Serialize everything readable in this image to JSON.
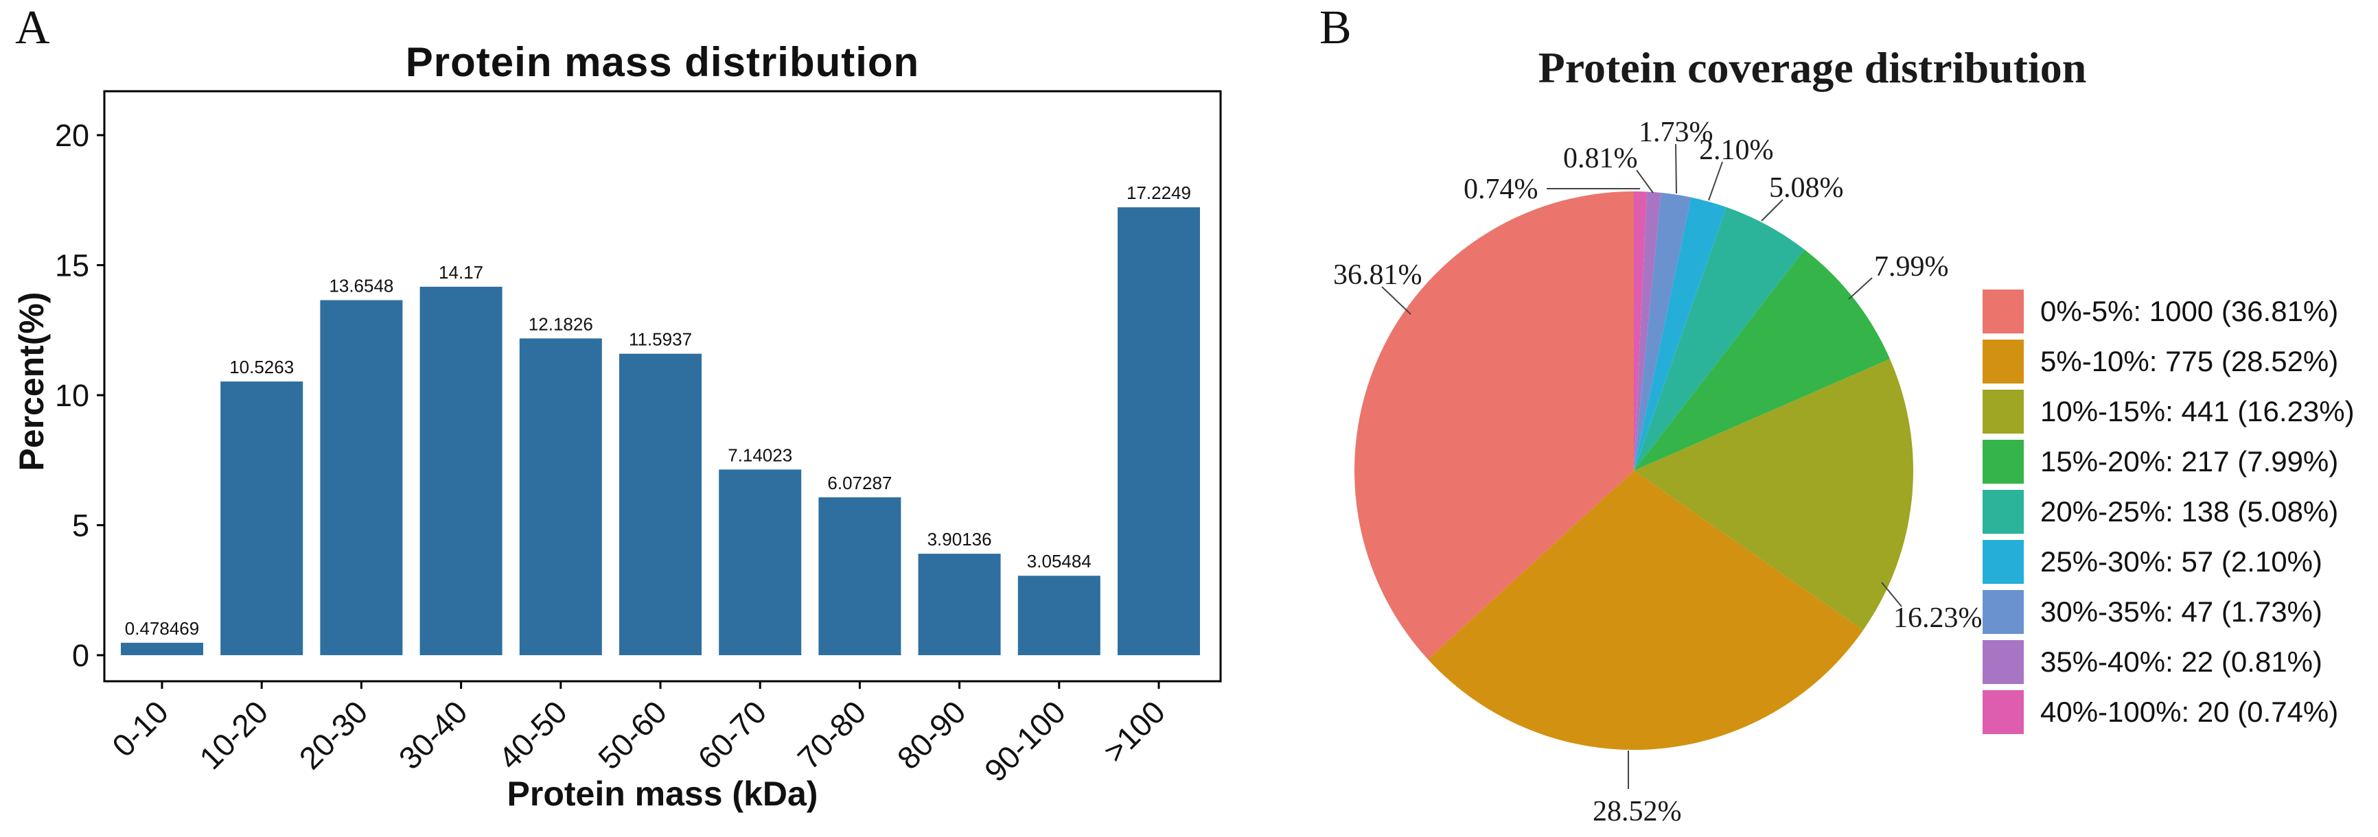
{
  "figure": {
    "panelA": {
      "letter": "A",
      "title": "Protein mass distribution",
      "xlabel": "Protein mass (kDa)",
      "ylabel": "Percent(%)"
    },
    "panelB": {
      "letter": "B",
      "title": "Protein coverage distribution"
    }
  },
  "chart_data": [
    {
      "type": "bar",
      "panel": "A",
      "title": "Protein mass distribution",
      "xlabel": "Protein mass (kDa)",
      "ylabel": "Percent(%)",
      "categories": [
        "0-10",
        "10-20",
        "20-30",
        "30-40",
        "40-50",
        "50-60",
        "60-70",
        "70-80",
        "80-90",
        "90-100",
        ">100"
      ],
      "values": [
        0.478469,
        10.5263,
        13.6548,
        14.17,
        12.1826,
        11.5937,
        7.14023,
        6.07287,
        3.90136,
        3.05484,
        17.2249
      ],
      "value_labels": [
        "0.478469",
        "10.5263",
        "13.6548",
        "14.17",
        "12.1826",
        "11.5937",
        "7.14023",
        "6.07287",
        "3.90136",
        "3.05484",
        "17.2249"
      ],
      "yticks": [
        0,
        5,
        10,
        15,
        20
      ],
      "ytick_labels": [
        "0",
        "5",
        "10",
        "15",
        "20"
      ],
      "ylim": [
        0,
        21.7
      ],
      "bar_color": "#2E6F9F",
      "axis_color": "#000000",
      "grid": false,
      "x_tick_rotation_deg": 45
    },
    {
      "type": "pie",
      "panel": "B",
      "title": "Protein coverage distribution",
      "legend_position": "right",
      "direction": "counterclockwise-from-top (legend order)",
      "slices": [
        {
          "label": "0%-5%",
          "count": 1000,
          "pct": 36.81,
          "pct_label": "36.81%",
          "legend": "0%-5%: 1000 (36.81%)",
          "color": "#EB746C"
        },
        {
          "label": "5%-10%",
          "count": 775,
          "pct": 28.52,
          "pct_label": "28.52%",
          "legend": "5%-10%: 775 (28.52%)",
          "color": "#D29110"
        },
        {
          "label": "10%-15%",
          "count": 441,
          "pct": 16.23,
          "pct_label": "16.23%",
          "legend": "10%-15%: 441 (16.23%)",
          "color": "#9EA624"
        },
        {
          "label": "15%-20%",
          "count": 217,
          "pct": 7.99,
          "pct_label": "7.99%",
          "legend": "15%-20%: 217 (7.99%)",
          "color": "#35B44A"
        },
        {
          "label": "20%-25%",
          "count": 138,
          "pct": 5.08,
          "pct_label": "5.08%",
          "legend": "20%-25%: 138 (5.08%)",
          "color": "#2BB49A"
        },
        {
          "label": "25%-30%",
          "count": 57,
          "pct": 2.1,
          "pct_label": "2.10%",
          "legend": "25%-30%: 57 (2.10%)",
          "color": "#25AFD8"
        },
        {
          "label": "30%-35%",
          "count": 47,
          "pct": 1.73,
          "pct_label": "1.73%",
          "legend": "30%-35%: 47 (1.73%)",
          "color": "#6A92CF"
        },
        {
          "label": "35%-40%",
          "count": 22,
          "pct": 0.81,
          "pct_label": "0.81%",
          "legend": "35%-40%: 22 (0.81%)",
          "color": "#A875C4"
        },
        {
          "label": "40%-100%",
          "count": 20,
          "pct": 0.74,
          "pct_label": "0.74%",
          "legend": "40%-100%: 20 (0.74%)",
          "color": "#DE5DAE"
        }
      ],
      "leader_line_color": "#444444"
    }
  ]
}
